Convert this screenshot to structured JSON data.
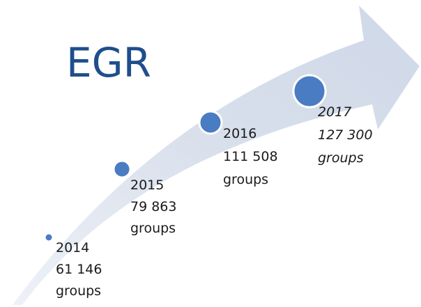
{
  "title": "EGR",
  "milestones": [
    {
      "year": "2014",
      "count": "61 146",
      "unit": "groups"
    },
    {
      "year": "2015",
      "count": "79 863",
      "unit": "groups"
    },
    {
      "year": "2016",
      "count": "111 508",
      "unit": "groups"
    },
    {
      "year": "2017",
      "count": "127 300",
      "unit": "groups"
    }
  ]
}
